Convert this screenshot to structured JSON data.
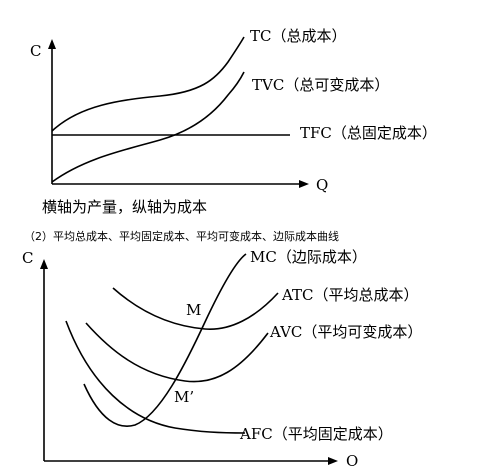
{
  "top_diagram": {
    "y_axis_label": "C",
    "x_axis_label": "Q",
    "curves": {
      "tc": "TC（总成本）",
      "tvc": "TVC（总可变成本）",
      "tfc": "TFC（总固定成本）"
    },
    "caption": "横轴为产量，纵轴为成本"
  },
  "section_title": "（2）平均总成本、平均固定成本、平均可变成本、边际成本曲线",
  "bottom_diagram": {
    "y_axis_label": "C",
    "x_axis_label": "Q",
    "curves": {
      "mc": "MC（边际成本）",
      "atc": "ATC（平均总成本）",
      "avc": "AVC（平均可变成本）",
      "afc": "AFC（平均固定成本）"
    },
    "points": {
      "m": "M",
      "m_prime": "M’"
    }
  }
}
